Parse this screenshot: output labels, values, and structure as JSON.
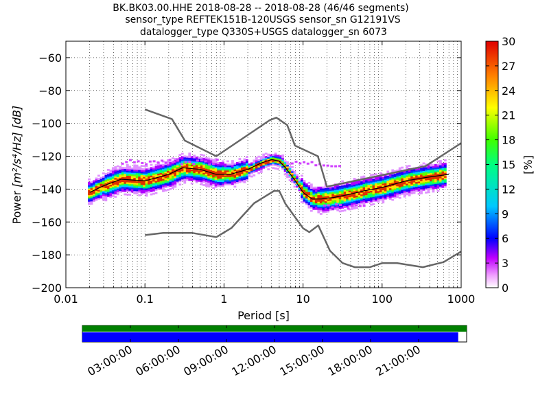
{
  "chart_data": {
    "type": "ppsd",
    "title_lines": [
      "BK.BK03.00.HHE   2018-08-28 -- 2018-08-28  (46/46 segments)",
      "sensor_type REFTEK151B-120USGS sensor_sn G12191VS",
      "datalogger_type Q330S+USGS datalogger_sn 6073"
    ],
    "xlabel": "Period [s]",
    "ylabel_prefix": "Power",
    "ylabel_unit": "[m²/s⁴/Hz] [dB]",
    "x_scale": "log",
    "xlim": [
      0.01,
      1000
    ],
    "ylim": [
      -200,
      -50
    ],
    "x_ticks": [
      0.01,
      0.1,
      1,
      10,
      100,
      1000
    ],
    "x_tick_labels": [
      "0.01",
      "0.1",
      "1",
      "10",
      "100",
      "1000"
    ],
    "y_ticks": [
      -200,
      -180,
      -160,
      -140,
      -120,
      -100,
      -80,
      -60
    ],
    "y_tick_labels": [
      "−200",
      "−180",
      "−160",
      "−140",
      "−120",
      "−100",
      "−80",
      "−60"
    ],
    "colorbar": {
      "label": "[%]",
      "range": [
        0,
        30
      ],
      "ticks": [
        0,
        3,
        6,
        9,
        12,
        15,
        18,
        21,
        24,
        27,
        30
      ]
    },
    "nhnm": {
      "name": "NHNM",
      "periods": [
        0.1,
        0.22,
        0.32,
        0.8,
        3.8,
        4.6,
        6.3,
        7.9,
        15.4,
        20,
        354.8,
        1000
      ],
      "power": [
        -91.5,
        -97.4,
        -110.5,
        -120,
        -98,
        -96.5,
        -101,
        -113.5,
        -120,
        -138.5,
        -126,
        -112
      ]
    },
    "nlnm": {
      "name": "NLNM",
      "periods": [
        0.1,
        0.17,
        0.4,
        0.8,
        1.24,
        2.4,
        4.3,
        5,
        6,
        10,
        12,
        15.6,
        21.9,
        31.6,
        45,
        70,
        101,
        154,
        328,
        600,
        1000
      ],
      "power": [
        -168,
        -166.7,
        -166.7,
        -169.2,
        -163.7,
        -148.6,
        -141.1,
        -141.1,
        -149,
        -163.8,
        -166.2,
        -162.1,
        -177.5,
        -185,
        -187.5,
        -187.5,
        -185,
        -185,
        -187.5,
        -184.4,
        -178
      ]
    },
    "mode_curve": {
      "name": "mode",
      "periods": [
        0.02,
        0.03,
        0.05,
        0.1,
        0.2,
        0.3,
        0.5,
        0.8,
        1.2,
        2,
        3,
        4,
        5,
        6,
        8,
        10,
        13,
        17,
        25,
        40,
        60,
        100,
        200,
        350,
        700
      ],
      "power": [
        -142,
        -138,
        -134,
        -135,
        -131,
        -127,
        -128,
        -131,
        -131,
        -128,
        -124,
        -122,
        -123,
        -127,
        -135,
        -142,
        -146,
        -146,
        -145,
        -143,
        -141,
        -139,
        -135,
        -133,
        -131
      ]
    },
    "data_coverage": {
      "time_ticks": [
        "03:00:00",
        "06:00:00",
        "09:00:00",
        "12:00:00",
        "15:00:00",
        "18:00:00",
        "21:00:00"
      ],
      "segments_bar": {
        "start_fraction": 0.0,
        "end_fraction": 1.0,
        "color": "#008000"
      },
      "data_bar": {
        "start_fraction": 0.0,
        "end_fraction": 0.978,
        "color": "#0000ff"
      }
    }
  }
}
